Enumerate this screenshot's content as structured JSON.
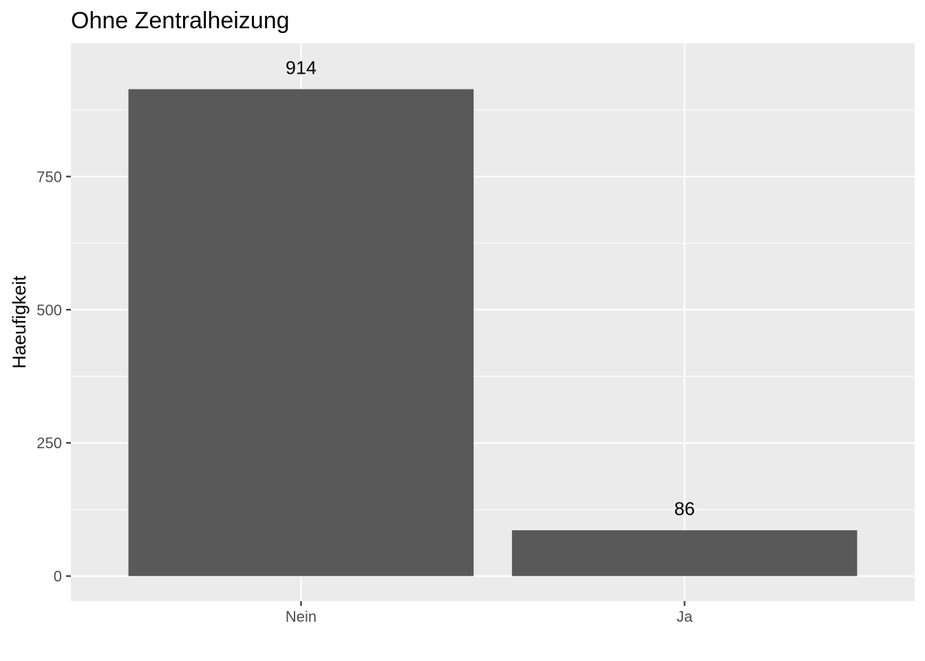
{
  "chart_data": {
    "type": "bar",
    "title": "Ohne Zentralheizung",
    "xlabel": "",
    "ylabel": "Haeufigkeit",
    "categories": [
      "Nein",
      "Ja"
    ],
    "values": [
      914,
      86
    ],
    "data_labels": [
      "914",
      "86"
    ],
    "y_ticks": [
      0,
      250,
      500,
      750
    ],
    "y_tick_labels": [
      "0",
      "250",
      "500",
      "750"
    ],
    "ylim": [
      -47,
      1000
    ],
    "grid": true,
    "legend": "none",
    "colors": {
      "bar": "#595959",
      "panel": "#ebebeb",
      "grid": "#ffffff"
    }
  }
}
